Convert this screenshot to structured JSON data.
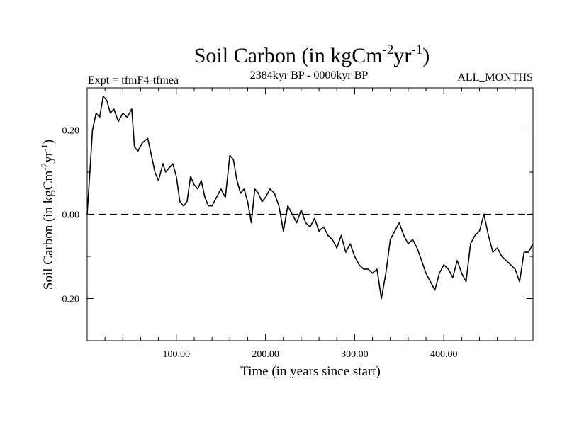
{
  "chart_data": {
    "type": "line",
    "title": "Soil Carbon (in kgCm",
    "title_sup1": "-2",
    "title_mid": "yr",
    "title_sup2": "-1",
    "title_end": ")",
    "subtitle_left": "Expt = tfmF4-tfmea",
    "subtitle_center": "2384kyr BP - 0000kyr BP",
    "subtitle_right": "ALL_MONTHS",
    "xlabel": "Time (in years since start)",
    "ylabel": "Soil Carbon (in kgCm",
    "ylabel_sup1": "-2",
    "ylabel_mid": "yr",
    "ylabel_sup2": "-1",
    "ylabel_end": ")",
    "xlim": [
      0,
      500
    ],
    "ylim": [
      -0.3,
      0.3
    ],
    "x_ticks": [
      100,
      200,
      300,
      400
    ],
    "x_tick_labels": [
      "100.00",
      "200.00",
      "300.00",
      "400.00"
    ],
    "y_ticks": [
      0.2,
      0.0,
      -0.2
    ],
    "y_tick_labels": [
      "0.20",
      "0.00",
      "-0.20"
    ],
    "reference_line": 0.0,
    "series": [
      {
        "name": "Soil Carbon",
        "x": [
          0,
          3,
          6,
          10,
          14,
          18,
          22,
          26,
          30,
          35,
          40,
          45,
          50,
          53,
          57,
          62,
          68,
          72,
          76,
          80,
          85,
          88,
          92,
          96,
          100,
          104,
          108,
          112,
          116,
          120,
          124,
          128,
          132,
          136,
          140,
          145,
          150,
          155,
          160,
          164,
          168,
          172,
          176,
          180,
          184,
          188,
          192,
          196,
          200,
          205,
          210,
          215,
          220,
          225,
          230,
          235,
          240,
          245,
          250,
          255,
          260,
          265,
          270,
          275,
          280,
          285,
          290,
          295,
          300,
          305,
          310,
          315,
          320,
          325,
          330,
          335,
          340,
          345,
          350,
          355,
          360,
          365,
          370,
          375,
          380,
          385,
          390,
          395,
          400,
          405,
          410,
          415,
          420,
          425,
          430,
          435,
          440,
          445,
          450,
          455,
          460,
          465,
          470,
          475,
          480,
          485,
          490,
          495,
          500
        ],
        "values": [
          0.0,
          0.1,
          0.2,
          0.24,
          0.23,
          0.28,
          0.27,
          0.24,
          0.25,
          0.22,
          0.24,
          0.23,
          0.25,
          0.16,
          0.15,
          0.17,
          0.18,
          0.14,
          0.1,
          0.08,
          0.12,
          0.1,
          0.11,
          0.12,
          0.09,
          0.03,
          0.02,
          0.03,
          0.09,
          0.07,
          0.06,
          0.08,
          0.04,
          0.02,
          0.02,
          0.04,
          0.06,
          0.04,
          0.14,
          0.13,
          0.08,
          0.05,
          0.06,
          0.03,
          -0.02,
          0.06,
          0.05,
          0.03,
          0.04,
          0.06,
          0.05,
          0.02,
          -0.04,
          0.02,
          0.0,
          -0.02,
          0.01,
          -0.02,
          -0.03,
          -0.01,
          -0.04,
          -0.03,
          -0.05,
          -0.06,
          -0.08,
          -0.05,
          -0.09,
          -0.07,
          -0.1,
          -0.12,
          -0.13,
          -0.13,
          -0.14,
          -0.13,
          -0.2,
          -0.14,
          -0.06,
          -0.04,
          -0.02,
          -0.05,
          -0.07,
          -0.06,
          -0.08,
          -0.11,
          -0.14,
          -0.16,
          -0.18,
          -0.14,
          -0.12,
          -0.13,
          -0.15,
          -0.11,
          -0.14,
          -0.16,
          -0.07,
          -0.05,
          -0.04,
          0.0,
          -0.05,
          -0.09,
          -0.08,
          -0.1,
          -0.11,
          -0.12,
          -0.13,
          -0.16,
          -0.09,
          -0.09,
          -0.07
        ]
      }
    ]
  }
}
